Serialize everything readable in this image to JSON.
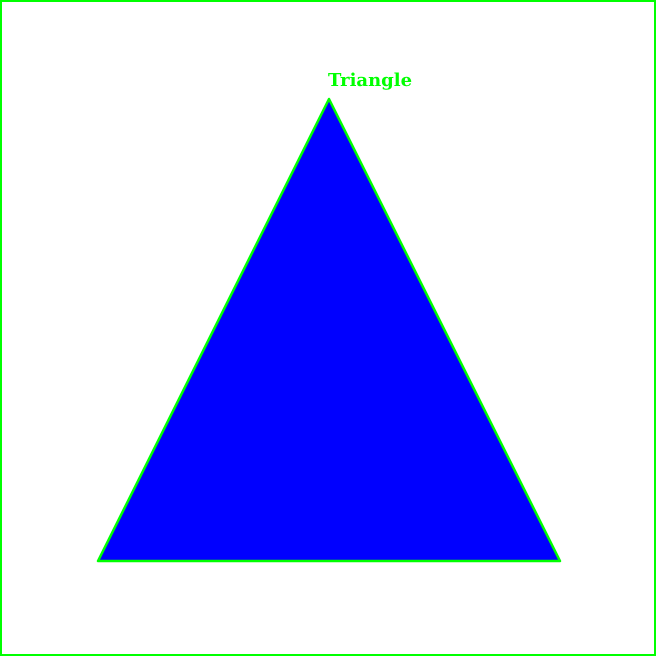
{
  "shape": {
    "label": "Triangle",
    "fill_color": "#0000ff",
    "outline_color": "#00ff00",
    "label_color": "#00ff00"
  },
  "canvas": {
    "border_color": "#00ff00",
    "background_color": "#ffffff"
  }
}
